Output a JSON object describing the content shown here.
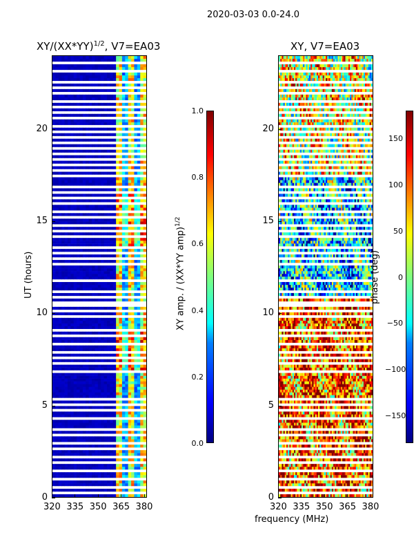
{
  "suptitle": "2020-03-03 0.0-24.0",
  "xlabel_shared": "frequency (MHz)",
  "chart_data": [
    {
      "type": "heatmap",
      "title": "XY/(XX*YY)",
      "title_sup": "1/2",
      "title_suffix": ", V7=EA03",
      "ylabel": "UT (hours)",
      "xlim": [
        320,
        382
      ],
      "ylim": [
        0,
        24
      ],
      "xticks": [
        320,
        335,
        350,
        365,
        380
      ],
      "yticks": [
        0,
        5,
        10,
        15,
        20
      ],
      "colorbar": {
        "label": "XY amp. / (XX*YY amp)",
        "label_sup": "1/2",
        "range": [
          0.0,
          1.0
        ],
        "ticks": [
          "0.0",
          "0.2",
          "0.4",
          "0.6",
          "0.8",
          "1.0"
        ],
        "colormap": "jet"
      }
    },
    {
      "type": "heatmap",
      "title": "XY, V7=EA03",
      "ylabel": "",
      "xlim": [
        320,
        382
      ],
      "ylim": [
        0,
        24
      ],
      "xticks": [
        320,
        335,
        350,
        365,
        380
      ],
      "yticks": [
        0,
        5,
        10,
        15,
        20
      ],
      "colorbar": {
        "label": "phase (deg)",
        "range": [
          -180,
          180
        ],
        "ticks": [
          "−150",
          "−100",
          "−50",
          "0",
          "50",
          "100",
          "150"
        ],
        "colormap": "jet"
      }
    }
  ]
}
